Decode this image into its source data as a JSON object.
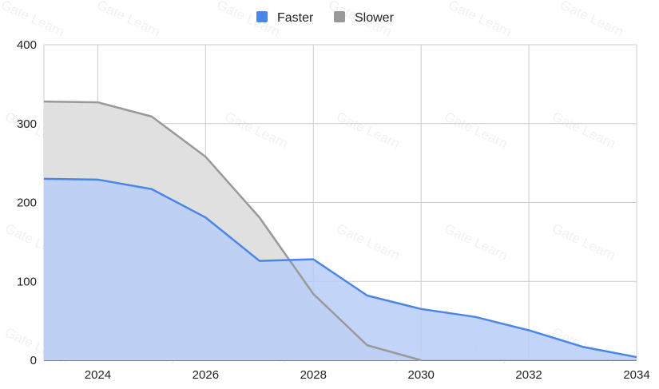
{
  "chart_data": {
    "type": "area",
    "x": [
      2023,
      2024,
      2025,
      2026,
      2027,
      2028,
      2029,
      2030,
      2031,
      2032,
      2033,
      2034
    ],
    "series": [
      {
        "name": "Faster",
        "color": "#4a86e8",
        "fill": "#b7cdf7",
        "values": [
          230,
          229,
          217,
          181,
          126,
          128,
          82,
          65,
          55,
          38,
          17,
          4
        ]
      },
      {
        "name": "Slower",
        "color": "#999999",
        "fill": "#e0e0e0",
        "values": [
          328,
          327,
          309,
          258,
          181,
          84,
          19,
          0,
          null,
          null,
          null,
          null
        ]
      }
    ],
    "xlim": [
      2023,
      2034
    ],
    "ylim": [
      0,
      400
    ],
    "xticks": [
      2024,
      2026,
      2028,
      2030,
      2032,
      2034
    ],
    "yticks": [
      0,
      100,
      200,
      300,
      400
    ],
    "grid": true,
    "legend": "top-center",
    "watermark": "Gate Learn"
  }
}
